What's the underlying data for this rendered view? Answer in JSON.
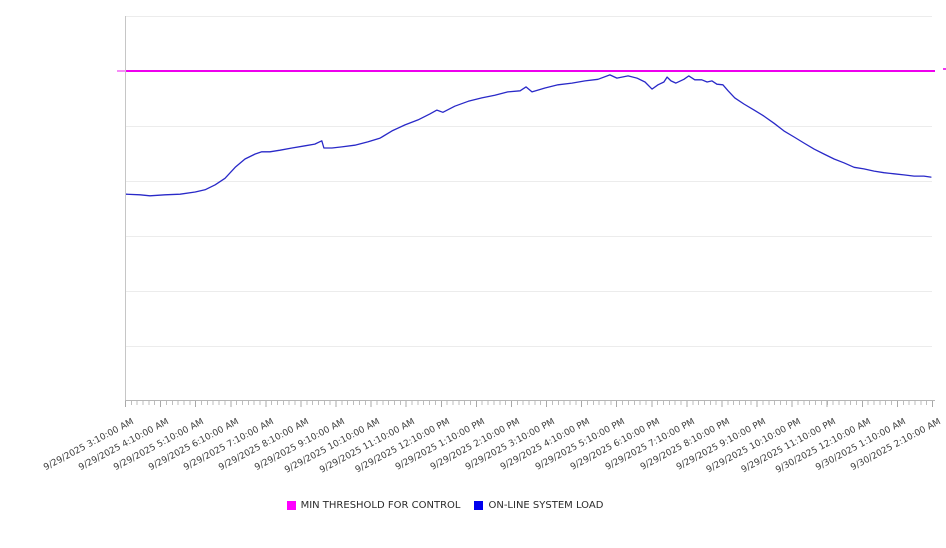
{
  "page": {
    "background": "#ffffff"
  },
  "legend": {
    "items": [
      {
        "label": "MIN THRESHOLD FOR CONTROL",
        "color": "#FF00FF"
      },
      {
        "label": "ON-LINE SYSTEM LOAD",
        "color": "#0000EE"
      }
    ]
  },
  "chart_data": {
    "type": "line",
    "title": "",
    "xlabel": "",
    "ylabel": "",
    "legend_position": "bottom-center",
    "grid": "horizontal",
    "x_axis": {
      "hours_span": 23,
      "minor_tick_interval_minutes": 10,
      "tick_labels": [
        "9/29/2025 3:10:00 AM",
        "9/29/2025 4:10:00 AM",
        "9/29/2025 5:10:00 AM",
        "9/29/2025 6:10:00 AM",
        "9/29/2025 7:10:00 AM",
        "9/29/2025 8:10:00 AM",
        "9/29/2025 9:10:00 AM",
        "9/29/2025 10:10:00 AM",
        "9/29/2025 11:10:00 AM",
        "9/29/2025 12:10:00 PM",
        "9/29/2025 1:10:00 PM",
        "9/29/2025 2:10:00 PM",
        "9/29/2025 3:10:00 PM",
        "9/29/2025 4:10:00 PM",
        "9/29/2025 5:10:00 PM",
        "9/29/2025 6:10:00 PM",
        "9/29/2025 7:10:00 PM",
        "9/29/2025 8:10:00 PM",
        "9/29/2025 9:10:00 PM",
        "9/29/2025 10:10:00 PM",
        "9/29/2025 11:10:00 PM",
        "9/30/2025 12:10:00 AM",
        "9/30/2025 1:10:00 AM",
        "9/30/2025 2:10:00 AM"
      ]
    },
    "y_axis": {
      "tick_labels_visible": false,
      "ylim": [
        0,
        7
      ],
      "gridlines": [
        1,
        2,
        3,
        4,
        5,
        6,
        7
      ],
      "note": "no numeric y labels shown; values in unlabeled gridline units (1 unit = 1 gridline interval)"
    },
    "series": [
      {
        "name": "MIN THRESHOLD FOR CONTROL",
        "type": "threshold",
        "color": "#EE00EE",
        "value": 6.0
      },
      {
        "name": "ON-LINE SYSTEM LOAD",
        "type": "line",
        "color": "#2929C8",
        "x_unit": "hours since 9/29/2025 3:10 AM",
        "points": [
          [
            0.03,
            3.76
          ],
          [
            0.43,
            3.75
          ],
          [
            0.71,
            3.73
          ],
          [
            1.14,
            3.75
          ],
          [
            1.57,
            3.76
          ],
          [
            2.0,
            3.8
          ],
          [
            2.28,
            3.84
          ],
          [
            2.57,
            3.93
          ],
          [
            2.85,
            4.05
          ],
          [
            3.14,
            4.25
          ],
          [
            3.42,
            4.4
          ],
          [
            3.71,
            4.49
          ],
          [
            3.9,
            4.53
          ],
          [
            4.13,
            4.53
          ],
          [
            4.42,
            4.56
          ],
          [
            4.76,
            4.6
          ],
          [
            5.13,
            4.64
          ],
          [
            5.41,
            4.67
          ],
          [
            5.61,
            4.73
          ],
          [
            5.67,
            4.6
          ],
          [
            5.9,
            4.6
          ],
          [
            6.18,
            4.62
          ],
          [
            6.55,
            4.65
          ],
          [
            6.92,
            4.71
          ],
          [
            7.27,
            4.78
          ],
          [
            7.61,
            4.91
          ],
          [
            7.98,
            5.02
          ],
          [
            8.35,
            5.11
          ],
          [
            8.69,
            5.22
          ],
          [
            8.89,
            5.29
          ],
          [
            9.06,
            5.25
          ],
          [
            9.4,
            5.36
          ],
          [
            9.78,
            5.45
          ],
          [
            10.17,
            5.51
          ],
          [
            10.54,
            5.56
          ],
          [
            10.91,
            5.62
          ],
          [
            11.26,
            5.64
          ],
          [
            11.43,
            5.71
          ],
          [
            11.6,
            5.62
          ],
          [
            11.97,
            5.69
          ],
          [
            12.34,
            5.75
          ],
          [
            12.74,
            5.78
          ],
          [
            13.11,
            5.82
          ],
          [
            13.48,
            5.85
          ],
          [
            13.82,
            5.93
          ],
          [
            14.02,
            5.87
          ],
          [
            14.34,
            5.91
          ],
          [
            14.59,
            5.87
          ],
          [
            14.82,
            5.8
          ],
          [
            15.02,
            5.67
          ],
          [
            15.19,
            5.75
          ],
          [
            15.36,
            5.8
          ],
          [
            15.45,
            5.89
          ],
          [
            15.56,
            5.82
          ],
          [
            15.7,
            5.78
          ],
          [
            15.93,
            5.85
          ],
          [
            16.07,
            5.91
          ],
          [
            16.24,
            5.84
          ],
          [
            16.44,
            5.84
          ],
          [
            16.59,
            5.8
          ],
          [
            16.73,
            5.82
          ],
          [
            16.87,
            5.76
          ],
          [
            17.04,
            5.75
          ],
          [
            17.19,
            5.64
          ],
          [
            17.38,
            5.51
          ],
          [
            17.64,
            5.4
          ],
          [
            17.93,
            5.29
          ],
          [
            18.21,
            5.18
          ],
          [
            18.5,
            5.05
          ],
          [
            18.78,
            4.91
          ],
          [
            19.07,
            4.8
          ],
          [
            19.35,
            4.69
          ],
          [
            19.64,
            4.58
          ],
          [
            19.92,
            4.49
          ],
          [
            20.21,
            4.4
          ],
          [
            20.49,
            4.33
          ],
          [
            20.78,
            4.25
          ],
          [
            21.06,
            4.22
          ],
          [
            21.35,
            4.18
          ],
          [
            21.63,
            4.15
          ],
          [
            21.92,
            4.13
          ],
          [
            22.2,
            4.11
          ],
          [
            22.49,
            4.09
          ],
          [
            22.77,
            4.09
          ],
          [
            22.97,
            4.07
          ]
        ]
      }
    ]
  }
}
